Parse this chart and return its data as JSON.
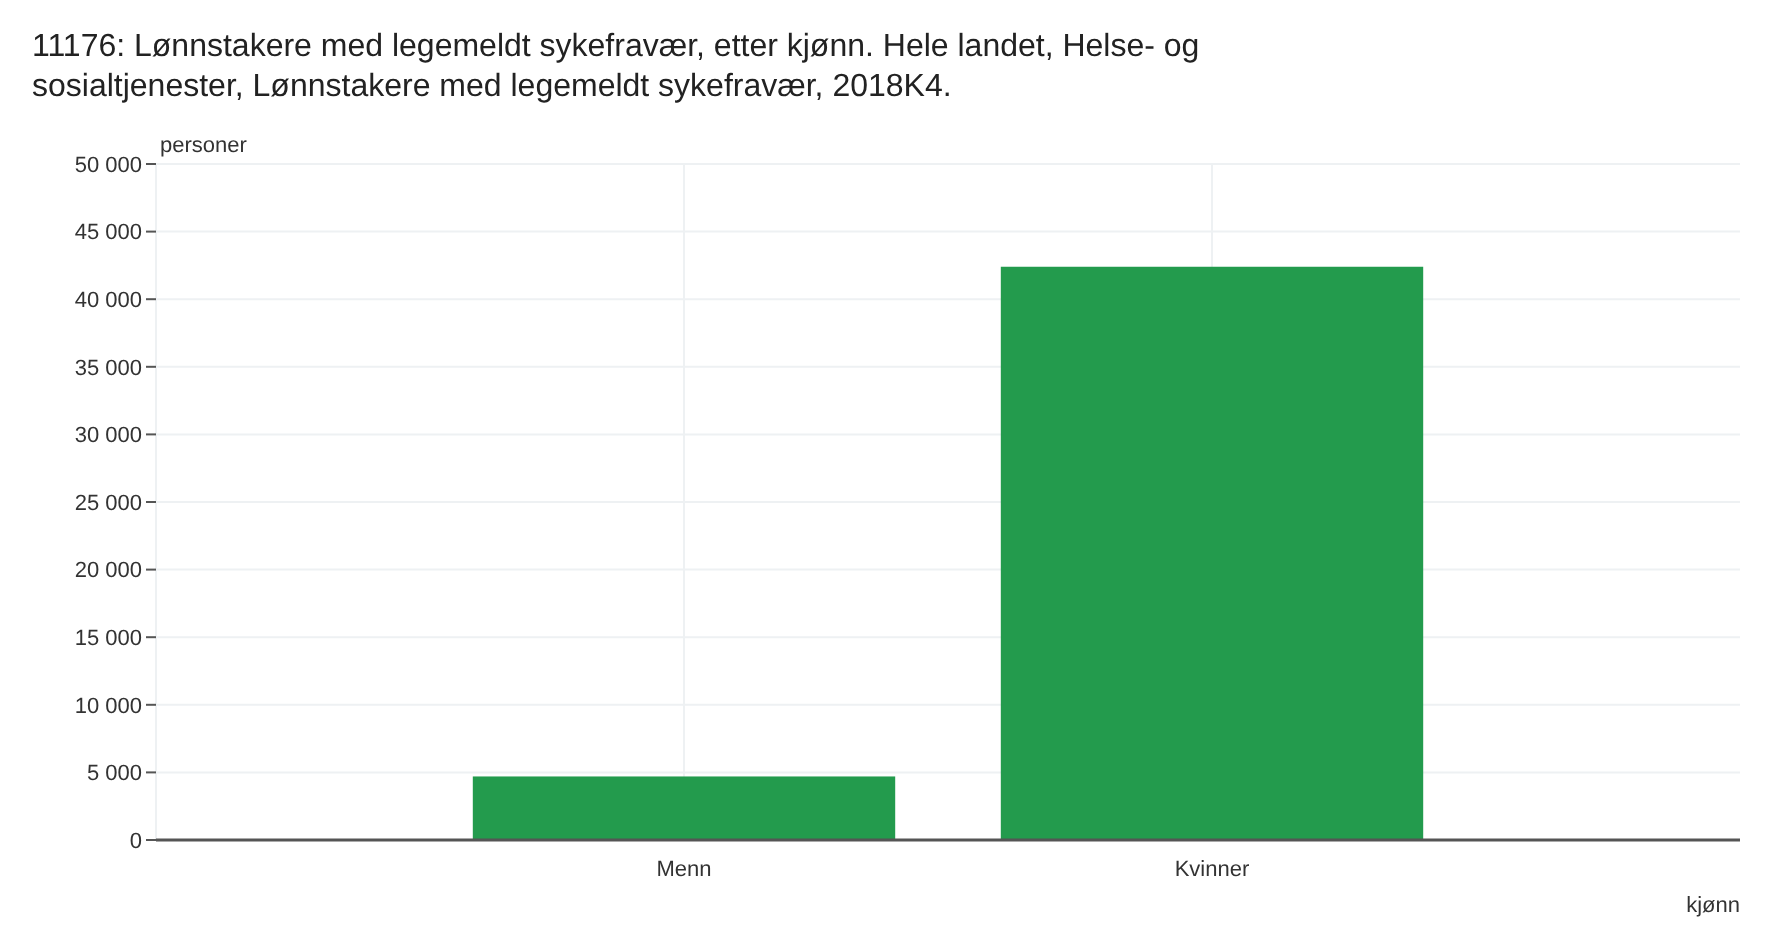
{
  "chart_data": {
    "type": "bar",
    "title": "11176: Lønnstakere med legemeldt sykefravær, etter kjønn. Hele landet, Helse- og sosialtjenester, Lønnstakere med legemeldt sykefravær, 2018K4.",
    "ylabel": "personer",
    "xlabel": "kjønn",
    "categories": [
      "Menn",
      "Kvinner"
    ],
    "values": [
      4700,
      42400
    ],
    "color": "#239b4d",
    "ylim": [
      0,
      50000
    ],
    "yticks": [
      {
        "value": 0,
        "label": "0"
      },
      {
        "value": 5000,
        "label": "5 000"
      },
      {
        "value": 10000,
        "label": "10 000"
      },
      {
        "value": 15000,
        "label": "15 000"
      },
      {
        "value": 20000,
        "label": "20 000"
      },
      {
        "value": 25000,
        "label": "25 000"
      },
      {
        "value": 30000,
        "label": "30 000"
      },
      {
        "value": 35000,
        "label": "35 000"
      },
      {
        "value": 40000,
        "label": "40 000"
      },
      {
        "value": 45000,
        "label": "45 000"
      },
      {
        "value": 50000,
        "label": "50 000"
      }
    ],
    "grid": true
  }
}
